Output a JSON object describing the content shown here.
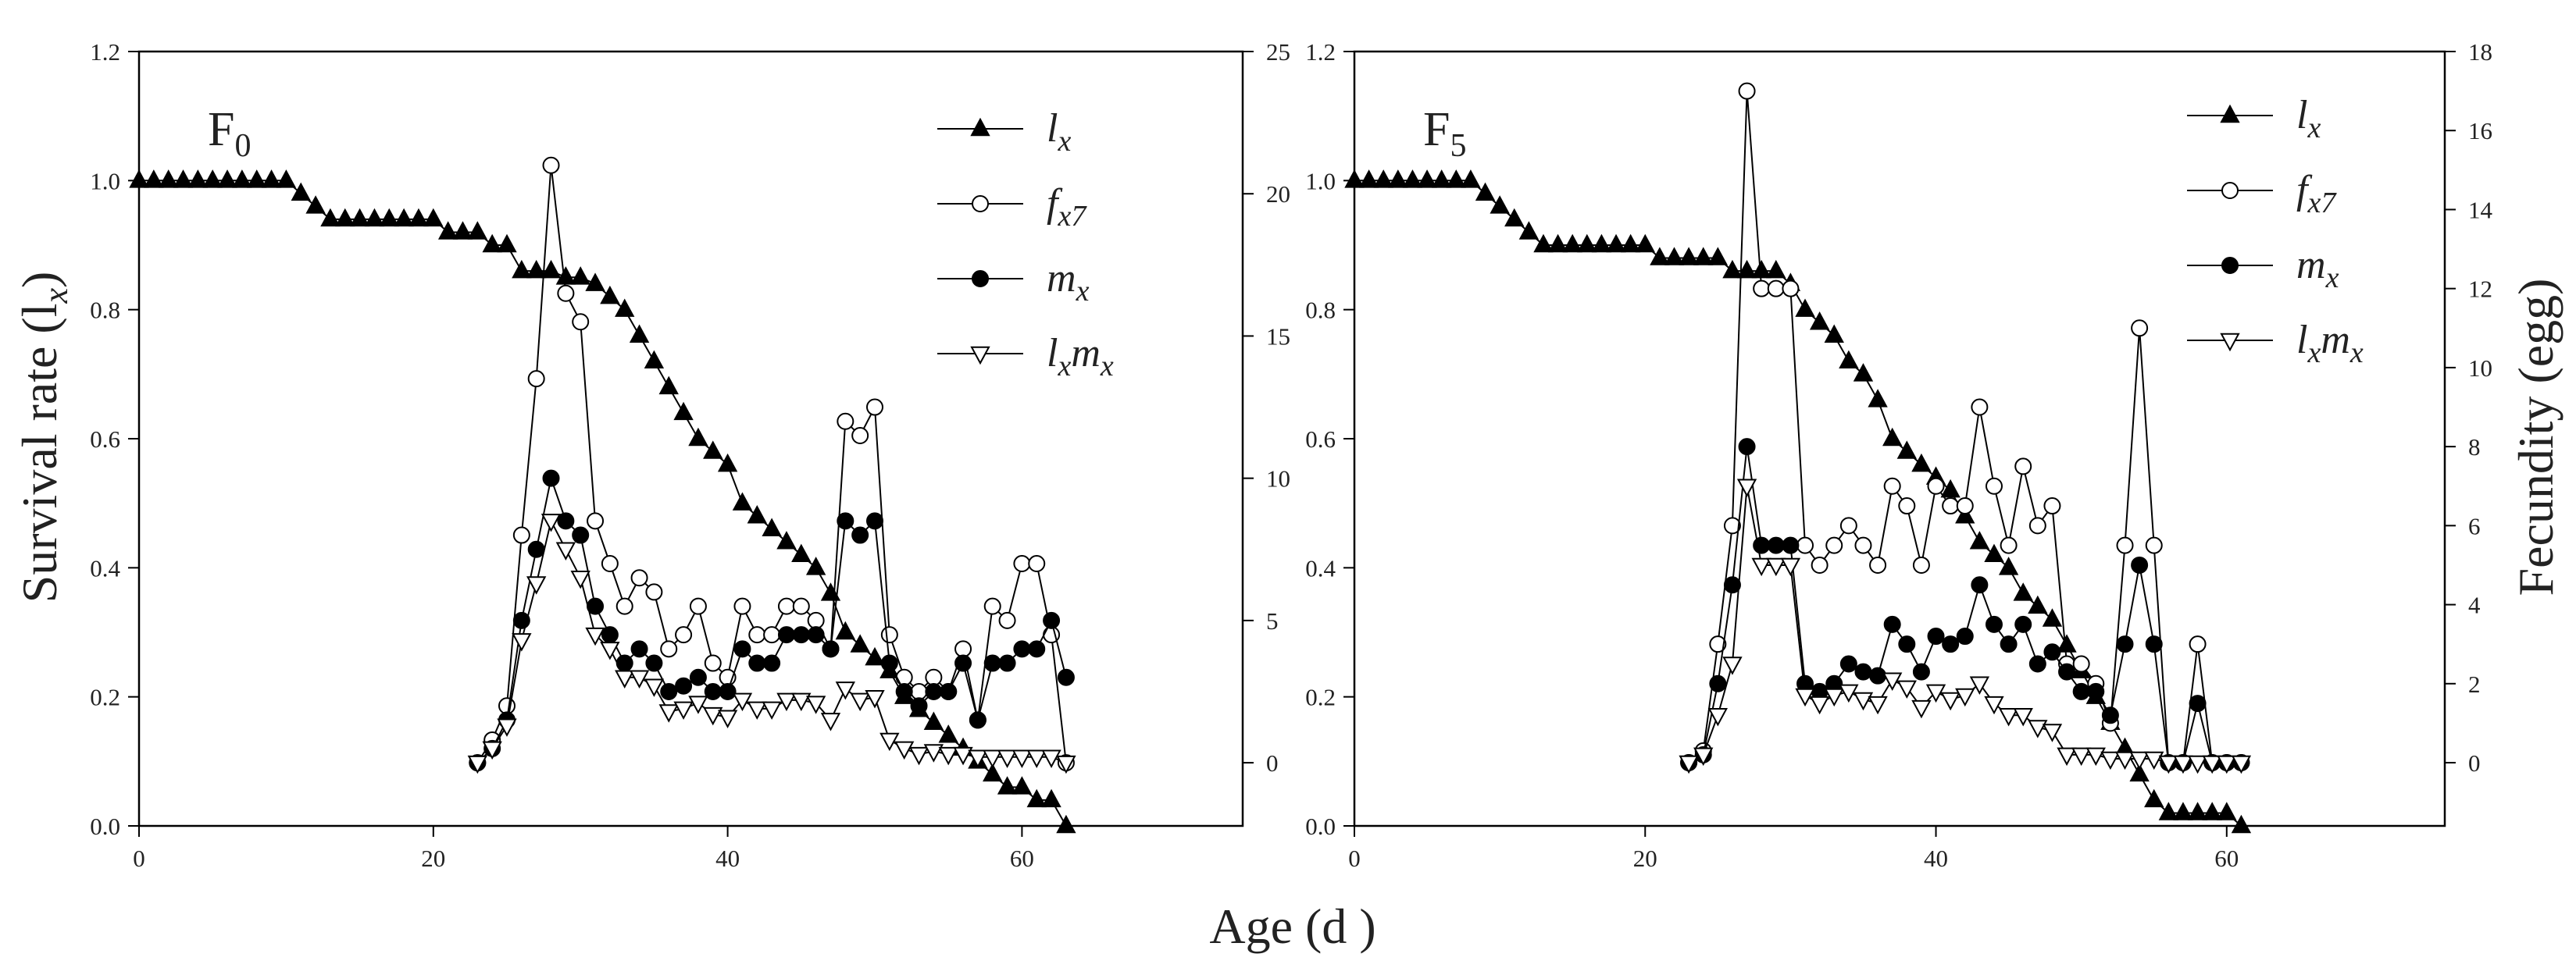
{
  "figure": {
    "xlabel": "Age (d )",
    "left_ylabel": "Survival rate (l",
    "left_ylabel_sub": "x",
    "left_ylabel_close": ")",
    "right_ylabel": "Fecundity (egg)"
  },
  "chart_data": [
    {
      "type": "line",
      "panel_label": "F",
      "panel_label_sub": "0",
      "xlim": [
        0,
        75
      ],
      "xticks": [
        0,
        20,
        40,
        60
      ],
      "ylim_left": [
        0,
        1.2
      ],
      "yticks_left": [
        0.0,
        0.2,
        0.4,
        0.6,
        0.8,
        1.0,
        1.2
      ],
      "ylim_right": [
        -2.22,
        25
      ],
      "yticks_right": [
        0,
        5,
        10,
        15,
        20,
        25
      ],
      "grid": false,
      "legend_position": "top-right",
      "series": [
        {
          "name": "l",
          "name_sub": "x",
          "marker": "filled-triangle-up",
          "axis": "left",
          "x": [
            0,
            1,
            2,
            3,
            4,
            5,
            6,
            7,
            8,
            9,
            10,
            11,
            12,
            13,
            14,
            15,
            16,
            17,
            18,
            19,
            20,
            21,
            22,
            23,
            24,
            25,
            26,
            27,
            28,
            29,
            30,
            31,
            32,
            33,
            34,
            35,
            36,
            37,
            38,
            39,
            40,
            41,
            42,
            43,
            44,
            45,
            46,
            47,
            48,
            49,
            50,
            51,
            52,
            53,
            54,
            55,
            56,
            57,
            58,
            59,
            60,
            61,
            62,
            63
          ],
          "y": [
            1.0,
            1.0,
            1.0,
            1.0,
            1.0,
            1.0,
            1.0,
            1.0,
            1.0,
            1.0,
            1.0,
            0.98,
            0.96,
            0.94,
            0.94,
            0.94,
            0.94,
            0.94,
            0.94,
            0.94,
            0.94,
            0.92,
            0.92,
            0.92,
            0.9,
            0.9,
            0.86,
            0.86,
            0.86,
            0.85,
            0.85,
            0.84,
            0.82,
            0.8,
            0.76,
            0.72,
            0.68,
            0.64,
            0.6,
            0.58,
            0.56,
            0.5,
            0.48,
            0.46,
            0.44,
            0.42,
            0.4,
            0.36,
            0.3,
            0.28,
            0.26,
            0.24,
            0.2,
            0.18,
            0.16,
            0.14,
            0.12,
            0.1,
            0.08,
            0.06,
            0.06,
            0.04,
            0.04,
            0.0
          ]
        },
        {
          "name": "f",
          "name_sub": "x7",
          "marker": "open-circle",
          "axis": "right",
          "x": [
            23,
            24,
            25,
            26,
            27,
            28,
            29,
            30,
            31,
            32,
            33,
            34,
            35,
            36,
            37,
            38,
            39,
            40,
            41,
            42,
            43,
            44,
            45,
            46,
            47,
            48,
            49,
            50,
            51,
            52,
            53,
            54,
            55,
            56,
            57,
            58,
            59,
            60,
            61,
            62,
            63
          ],
          "y": [
            0,
            0.8,
            2,
            8,
            13.5,
            21,
            16.5,
            15.5,
            8.5,
            7,
            5.5,
            6.5,
            6,
            4,
            4.5,
            5.5,
            3.5,
            3,
            5.5,
            4.5,
            4.5,
            5.5,
            5.5,
            5,
            4,
            12,
            11.5,
            12.5,
            4.5,
            3,
            2.5,
            3,
            2.5,
            4,
            1.5,
            5.5,
            5,
            7,
            7,
            4.5,
            0
          ]
        },
        {
          "name": "m",
          "name_sub": "x",
          "marker": "filled-circle",
          "axis": "right",
          "x": [
            23,
            24,
            25,
            26,
            27,
            28,
            29,
            30,
            31,
            32,
            33,
            34,
            35,
            36,
            37,
            38,
            39,
            40,
            41,
            42,
            43,
            44,
            45,
            46,
            47,
            48,
            49,
            50,
            51,
            52,
            53,
            54,
            55,
            56,
            57,
            58,
            59,
            60,
            61,
            62,
            63
          ],
          "y": [
            0,
            0.5,
            1.5,
            5,
            7.5,
            10,
            8.5,
            8,
            5.5,
            4.5,
            3.5,
            4,
            3.5,
            2.5,
            2.7,
            3,
            2.5,
            2.5,
            4,
            3.5,
            3.5,
            4.5,
            4.5,
            4.5,
            4,
            8.5,
            8,
            8.5,
            3.5,
            2.5,
            2,
            2.5,
            2.5,
            3.5,
            1.5,
            3.5,
            3.5,
            4,
            4,
            5,
            3
          ]
        },
        {
          "name": "l",
          "name_sub": "x",
          "name_mid": "m",
          "name_sub2": "x",
          "marker": "open-triangle-down",
          "axis": "right",
          "x": [
            23,
            24,
            25,
            26,
            27,
            28,
            29,
            30,
            31,
            32,
            33,
            34,
            35,
            36,
            37,
            38,
            39,
            40,
            41,
            42,
            43,
            44,
            45,
            46,
            47,
            48,
            49,
            50,
            51,
            52,
            53,
            54,
            55,
            56,
            57,
            58,
            59,
            60,
            61,
            62,
            63
          ],
          "y": [
            0,
            0.5,
            1.3,
            4.3,
            6.3,
            8.5,
            7.5,
            6.5,
            4.5,
            4,
            3,
            3,
            2.7,
            1.8,
            1.9,
            2.1,
            1.7,
            1.6,
            2.2,
            1.9,
            1.9,
            2.2,
            2.2,
            2.1,
            1.5,
            2.6,
            2.2,
            2.3,
            0.8,
            0.5,
            0.3,
            0.4,
            0.3,
            0.3,
            0.2,
            0.2,
            0.2,
            0.2,
            0.2,
            0.2,
            0
          ]
        }
      ]
    },
    {
      "type": "line",
      "panel_label": "F",
      "panel_label_sub": "5",
      "xlim": [
        0,
        75
      ],
      "xticks": [
        0,
        20,
        40,
        60
      ],
      "ylim_left": [
        0,
        1.2
      ],
      "yticks_left": [
        0.0,
        0.2,
        0.4,
        0.6,
        0.8,
        1.0,
        1.2
      ],
      "ylim_right": [
        -1.6,
        18
      ],
      "yticks_right": [
        0,
        2,
        4,
        6,
        8,
        10,
        12,
        14,
        16,
        18
      ],
      "grid": false,
      "legend_position": "top-right",
      "series": [
        {
          "name": "l",
          "name_sub": "x",
          "marker": "filled-triangle-up",
          "axis": "left",
          "x": [
            0,
            1,
            2,
            3,
            4,
            5,
            6,
            7,
            8,
            9,
            10,
            11,
            12,
            13,
            14,
            15,
            16,
            17,
            18,
            19,
            20,
            21,
            22,
            23,
            24,
            25,
            26,
            27,
            28,
            29,
            30,
            31,
            32,
            33,
            34,
            35,
            36,
            37,
            38,
            39,
            40,
            41,
            42,
            43,
            44,
            45,
            46,
            47,
            48,
            49,
            50,
            51,
            52,
            53,
            54,
            55,
            56,
            57,
            58,
            59,
            60,
            61
          ],
          "y": [
            1.0,
            1.0,
            1.0,
            1.0,
            1.0,
            1.0,
            1.0,
            1.0,
            1.0,
            0.98,
            0.96,
            0.94,
            0.92,
            0.9,
            0.9,
            0.9,
            0.9,
            0.9,
            0.9,
            0.9,
            0.9,
            0.88,
            0.88,
            0.88,
            0.88,
            0.88,
            0.86,
            0.86,
            0.86,
            0.86,
            0.84,
            0.8,
            0.78,
            0.76,
            0.72,
            0.7,
            0.66,
            0.6,
            0.58,
            0.56,
            0.54,
            0.52,
            0.48,
            0.44,
            0.42,
            0.4,
            0.36,
            0.34,
            0.32,
            0.28,
            0.24,
            0.2,
            0.16,
            0.12,
            0.08,
            0.04,
            0.02,
            0.02,
            0.02,
            0.02,
            0.02,
            0.0
          ]
        },
        {
          "name": "f",
          "name_sub": "x7",
          "marker": "open-circle",
          "axis": "right",
          "x": [
            23,
            24,
            25,
            26,
            27,
            28,
            29,
            30,
            31,
            32,
            33,
            34,
            35,
            36,
            37,
            38,
            39,
            40,
            41,
            42,
            43,
            44,
            45,
            46,
            47,
            48,
            49,
            50,
            51,
            52,
            53,
            54,
            55,
            56,
            57,
            58,
            59,
            60,
            61
          ],
          "y": [
            0,
            0.3,
            3,
            6,
            17,
            12,
            12,
            12,
            5.5,
            5,
            5.5,
            6,
            5.5,
            5,
            7,
            6.5,
            5,
            7,
            6.5,
            6.5,
            9,
            7,
            5.5,
            7.5,
            6,
            6.5,
            2.5,
            2.5,
            2,
            1,
            5.5,
            11,
            5.5,
            0,
            0,
            3,
            0,
            0,
            0
          ]
        },
        {
          "name": "m",
          "name_sub": "x",
          "marker": "filled-circle",
          "axis": "right",
          "x": [
            23,
            24,
            25,
            26,
            27,
            28,
            29,
            30,
            31,
            32,
            33,
            34,
            35,
            36,
            37,
            38,
            39,
            40,
            41,
            42,
            43,
            44,
            45,
            46,
            47,
            48,
            49,
            50,
            51,
            52,
            53,
            54,
            55,
            56,
            57,
            58,
            59,
            60,
            61
          ],
          "y": [
            0,
            0.2,
            2,
            4.5,
            8,
            5.5,
            5.5,
            5.5,
            2,
            1.8,
            2,
            2.5,
            2.3,
            2.2,
            3.5,
            3,
            2.3,
            3.2,
            3,
            3.2,
            4.5,
            3.5,
            3,
            3.5,
            2.5,
            2.8,
            2.3,
            1.8,
            1.8,
            1.2,
            3,
            5,
            3,
            0,
            0,
            1.5,
            0,
            0,
            0
          ]
        },
        {
          "name": "l",
          "name_sub": "x",
          "name_mid": "m",
          "name_sub2": "x",
          "marker": "open-triangle-down",
          "axis": "right",
          "x": [
            23,
            24,
            25,
            26,
            27,
            28,
            29,
            30,
            31,
            32,
            33,
            34,
            35,
            36,
            37,
            38,
            39,
            40,
            41,
            42,
            43,
            44,
            45,
            46,
            47,
            48,
            49,
            50,
            51,
            52,
            53,
            54,
            55,
            56,
            57,
            58,
            59,
            60,
            61
          ],
          "y": [
            0,
            0.2,
            1.2,
            2.5,
            7,
            5,
            5,
            5,
            1.7,
            1.5,
            1.7,
            1.8,
            1.6,
            1.5,
            2.1,
            1.9,
            1.4,
            1.8,
            1.6,
            1.7,
            2,
            1.5,
            1.2,
            1.2,
            0.9,
            0.8,
            0.2,
            0.2,
            0.2,
            0.1,
            0.1,
            0.1,
            0.1,
            0,
            0,
            0,
            0,
            0,
            0
          ]
        }
      ]
    }
  ]
}
